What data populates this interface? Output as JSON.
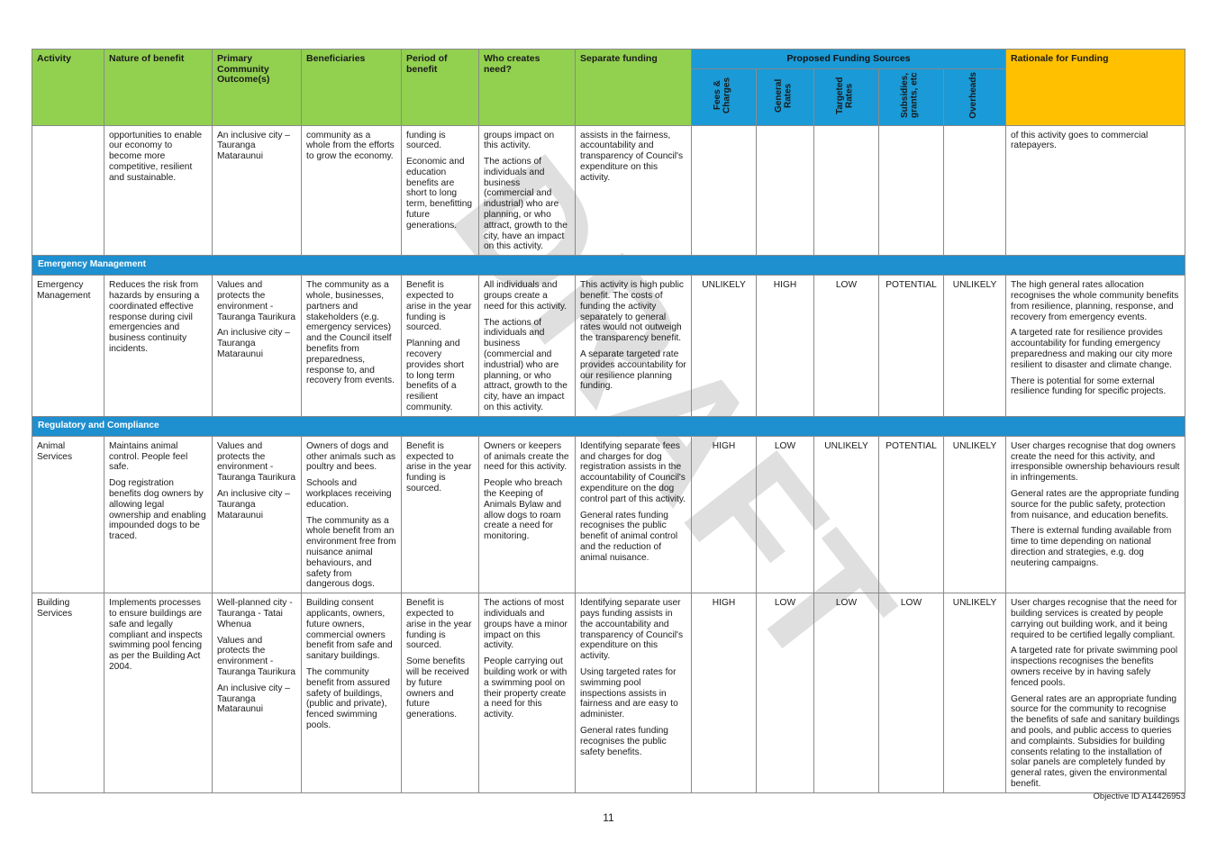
{
  "watermark": "DRAFT",
  "headers": {
    "activity": "Activity",
    "nature": "Nature of benefit",
    "outcome": "Primary Community Outcome(s)",
    "beneficiaries": "Beneficiaries",
    "period": "Period of benefit",
    "who": "Who creates need?",
    "separate": "Separate funding",
    "sources": "Proposed Funding Sources",
    "fees": "Fees & Charges",
    "general": "General Rates",
    "targeted": "Targeted Rates",
    "subsidies": "Subsidies, grants, etc",
    "overheads": "Overheads",
    "rationale": "Rationale for Funding"
  },
  "continued": {
    "nature": [
      "opportunities to enable our economy to become more competitive, resilient and sustainable."
    ],
    "outcome": [
      "An inclusive city – Tauranga Mataraunui"
    ],
    "beneficiaries": [
      "community as a whole from the efforts to grow the economy."
    ],
    "period": [
      "funding is sourced.",
      "Economic and education benefits are short to long term, benefitting future generations."
    ],
    "who": [
      "groups impact on this activity.",
      "The actions of individuals and business (commercial and industrial) who are planning, or who attract, growth to the city, have an impact on this activity."
    ],
    "separate": [
      "assists in the fairness, accountability and transparency of Council's expenditure on this activity."
    ],
    "rationale": [
      "of this activity goes to commercial ratepayers."
    ]
  },
  "sections": {
    "emergency": "Emergency Management",
    "regulatory": "Regulatory and Compliance"
  },
  "rows": {
    "emergency": {
      "activity": "Emergency Management",
      "nature": [
        "Reduces the risk from hazards by ensuring a coordinated effective response during civil emergencies and business continuity incidents."
      ],
      "outcome": [
        "Values and protects the environment - Tauranga Taurikura",
        "An inclusive city – Tauranga Mataraunui"
      ],
      "beneficiaries": [
        "The community as a whole, businesses, partners and stakeholders (e.g. emergency services) and the Council itself benefits from preparedness, response to, and recovery from events."
      ],
      "period": [
        "Benefit is expected to arise in the year funding is sourced.",
        "Planning and recovery provides short to long term benefits of a resilient community."
      ],
      "who": [
        "All individuals and groups create a need for this activity.",
        "The actions of individuals and business (commercial and industrial) who are planning, or who attract, growth to the city, have an impact on this activity."
      ],
      "separate": [
        "This activity is high public benefit. The costs of funding the activity separately to general rates would not outweigh the transparency benefit.",
        "A separate targeted rate provides accountability for our resilience planning funding."
      ],
      "fees": "UNLIKELY",
      "general": "HIGH",
      "targeted": "LOW",
      "subsidies": "POTENTIAL",
      "overheads": "UNLIKELY",
      "rationale": [
        "The high general rates allocation recognises the whole community benefits from resilience, planning, response, and recovery from emergency events.",
        "A targeted rate for resilience provides accountability for funding emergency preparedness and making our city more resilient to disaster and climate change.",
        "There is potential for some external resilience funding for specific projects."
      ]
    },
    "animal": {
      "activity": "Animal Services",
      "nature": [
        "Maintains animal control. People feel safe.",
        "Dog registration benefits dog owners by allowing legal ownership and enabling impounded dogs to be traced."
      ],
      "outcome": [
        "Values and protects the environment - Tauranga Taurikura",
        "An inclusive city – Tauranga Mataraunui"
      ],
      "beneficiaries": [
        "Owners of dogs and other animals such as poultry and bees.",
        "Schools and workplaces receiving education.",
        "The community as a whole benefit from an environment free from nuisance animal behaviours, and safety from dangerous dogs."
      ],
      "period": [
        "Benefit is expected to arise in the year funding is sourced."
      ],
      "who": [
        "Owners or keepers of animals create the need for this activity.",
        "People who breach the Keeping of Animals Bylaw and allow dogs to roam create a need for monitoring."
      ],
      "separate": [
        "Identifying separate fees and charges for dog registration assists in the accountability of Council's expenditure on the dog control part of this activity.",
        "General rates funding recognises the public benefit of animal control and the reduction of animal nuisance."
      ],
      "fees": "HIGH",
      "general": "LOW",
      "targeted": "UNLIKELY",
      "subsidies": "POTENTIAL",
      "overheads": "UNLIKELY",
      "rationale": [
        "User charges recognise that dog owners create the need for this activity, and irresponsible ownership behaviours result in infringements.",
        "General rates are the appropriate funding source for the public safety, protection from nuisance, and education benefits.",
        "There is external funding available from time to time depending on national direction and strategies, e.g. dog neutering campaigns."
      ]
    },
    "building": {
      "activity": "Building Services",
      "nature": [
        "Implements processes to ensure buildings are safe and legally compliant and inspects swimming pool fencing as per the Building Act 2004."
      ],
      "outcome": [
        "Well-planned city - Tauranga - Tatai Whenua",
        "Values and protects the environment - Tauranga Taurikura",
        "An inclusive city – Tauranga Mataraunui"
      ],
      "beneficiaries": [
        "Building consent applicants, owners, future owners, commercial owners benefit from safe and sanitary buildings.",
        "The community benefit from assured safety of buildings, (public and private), fenced swimming pools."
      ],
      "period": [
        "Benefit is expected to arise in the year funding is sourced.",
        "Some benefits will be received by future owners and future generations."
      ],
      "who": [
        "The actions of most individuals and groups have a minor impact on this activity.",
        "People carrying out building work or with a swimming pool on their property create a need for this activity."
      ],
      "separate": [
        "Identifying separate user pays funding assists in the accountability and transparency of Council's expenditure on this activity.",
        "Using targeted rates for swimming pool inspections assists in fairness and are easy to administer.",
        "General rates funding recognises the public safety benefits."
      ],
      "fees": "HIGH",
      "general": "LOW",
      "targeted": "LOW",
      "subsidies": "LOW",
      "overheads": "UNLIKELY",
      "rationale": [
        "User charges recognise that the need for building services is created by people carrying out building work, and it being required to be certified legally compliant.",
        "A targeted rate for private swimming pool inspections recognises the benefits owners receive by in having safely fenced pools.",
        "General rates are an appropriate funding source for the community to recognise the benefits of safe and sanitary buildings and pools, and public access to queries and complaints. Subsidies for building consents relating to the installation of solar panels are completely funded by general rates, given the environmental benefit."
      ]
    }
  },
  "footer": {
    "objective_id": "Objective ID A14426953",
    "page_number": "11"
  },
  "colors": {
    "header_green": "#92d050",
    "header_blue": "#1a9ad6",
    "header_yellow": "#ffc000",
    "section_blue": "#1e8fcf"
  }
}
